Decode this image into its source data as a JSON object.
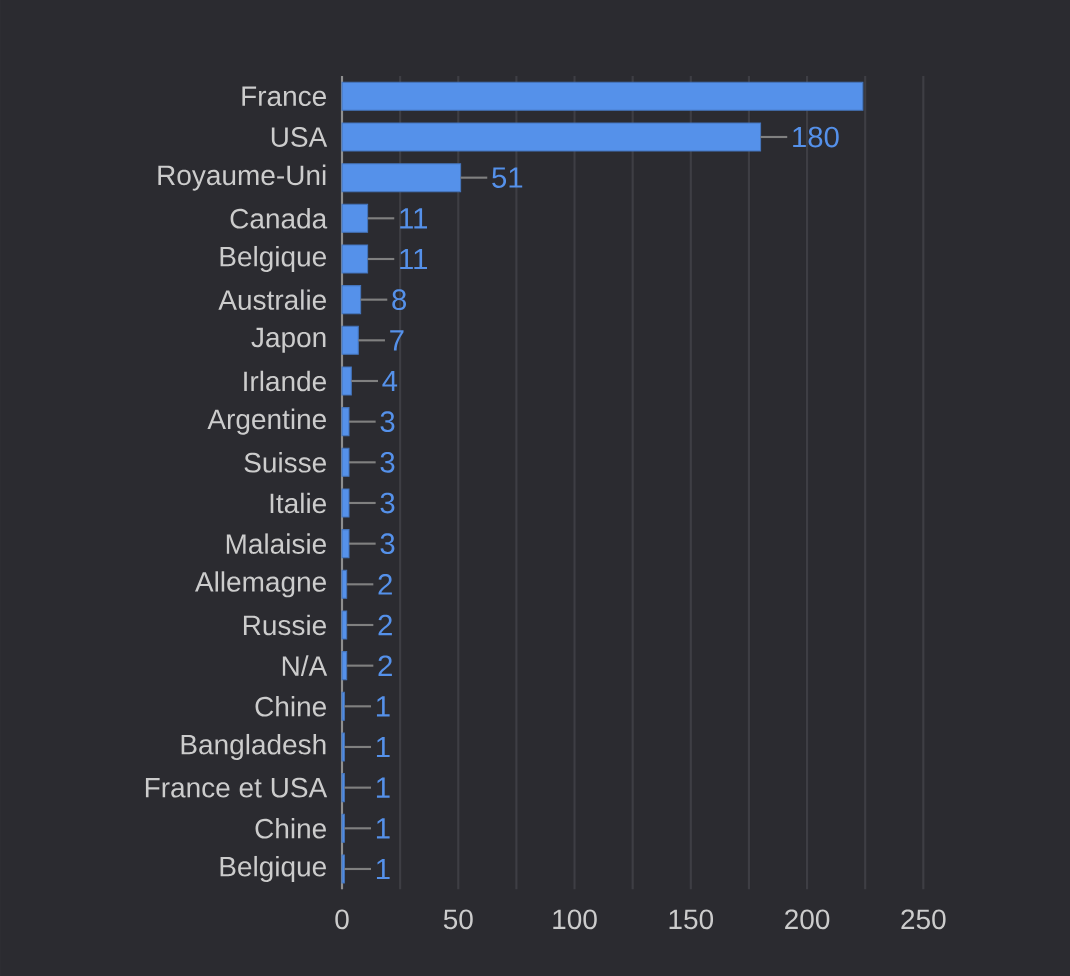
{
  "chart_data": {
    "type": "bar",
    "orientation": "horizontal",
    "categories": [
      "France",
      "USA",
      "Royaume-Uni",
      "Canada",
      "Belgique",
      "Australie",
      "Japon",
      "Irlande",
      "Argentine",
      "Suisse",
      "Italie",
      "Malaisie",
      "Allemagne",
      "Russie",
      "N/A",
      "Chine",
      "Bangladesh",
      "France et USA",
      "Chine",
      "Belgique"
    ],
    "values": [
      224,
      180,
      51,
      11,
      11,
      8,
      7,
      4,
      3,
      3,
      3,
      3,
      2,
      2,
      2,
      1,
      1,
      1,
      1,
      1
    ],
    "value_labels": [
      null,
      "180",
      "51",
      "11",
      "11",
      "8",
      "7",
      "4",
      "3",
      "3",
      "3",
      "3",
      "2",
      "2",
      "2",
      "1",
      "1",
      "1",
      "1",
      "1"
    ],
    "color": "#5591ea",
    "xlim": [
      0,
      250
    ],
    "xticks": [
      0,
      {
        "value": 25,
        "label": null
      },
      50,
      {
        "value": 75,
        "label": null
      },
      100,
      {
        "value": 125,
        "label": null
      },
      150,
      {
        "value": 175,
        "label": null
      },
      200,
      {
        "value": 225,
        "label": null
      },
      250
    ],
    "grid": "x"
  }
}
